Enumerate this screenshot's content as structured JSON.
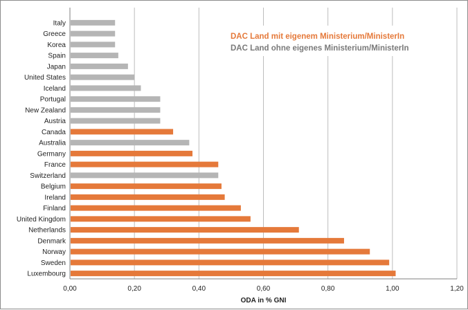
{
  "colors": {
    "with_ministry": "#e5793a",
    "without_ministry": "#b5b5b5",
    "legend_with": "#e5793a",
    "legend_without": "#7a7a7a",
    "grid": "#bdbdbd",
    "axis": "#7f7f7f"
  },
  "legend": {
    "with_ministry": "DAC Land mit eigenem Ministerium/MinisterIn",
    "without_ministry": "DAC Land ohne eigenes Ministerium/MinisterIn"
  },
  "chart_data": {
    "type": "bar",
    "orientation": "horizontal",
    "xlabel": "ODA in % GNI",
    "ylabel": "",
    "xlim": [
      0,
      1.2
    ],
    "xticks": [
      "0,00",
      "0,20",
      "0,40",
      "0,60",
      "0,80",
      "1,00",
      "1,20"
    ],
    "grid": "vertical",
    "legend_position": "top-right",
    "categories": [
      "Italy",
      "Greece",
      "Korea",
      "Spain",
      "Japan",
      "United States",
      "Iceland",
      "Portugal",
      "New Zealand",
      "Austria",
      "Canada",
      "Australia",
      "Germany",
      "France",
      "Switzerland",
      "Belgium",
      "Ireland",
      "Finland",
      "United Kingdom",
      "Netherlands",
      "Denmark",
      "Norway",
      "Sweden",
      "Luxembourg"
    ],
    "values": [
      0.14,
      0.14,
      0.14,
      0.15,
      0.18,
      0.2,
      0.22,
      0.28,
      0.28,
      0.28,
      0.32,
      0.37,
      0.38,
      0.46,
      0.46,
      0.47,
      0.48,
      0.53,
      0.56,
      0.71,
      0.85,
      0.93,
      0.99,
      1.01
    ],
    "group": [
      "without",
      "without",
      "without",
      "without",
      "without",
      "without",
      "without",
      "without",
      "without",
      "without",
      "with",
      "without",
      "with",
      "with",
      "without",
      "with",
      "with",
      "with",
      "with",
      "with",
      "with",
      "with",
      "with",
      "with"
    ],
    "series": [
      {
        "name": "DAC Land mit eigenem Ministerium/MinisterIn",
        "key": "with"
      },
      {
        "name": "DAC Land ohne eigenes Ministerium/MinisterIn",
        "key": "without"
      }
    ]
  }
}
